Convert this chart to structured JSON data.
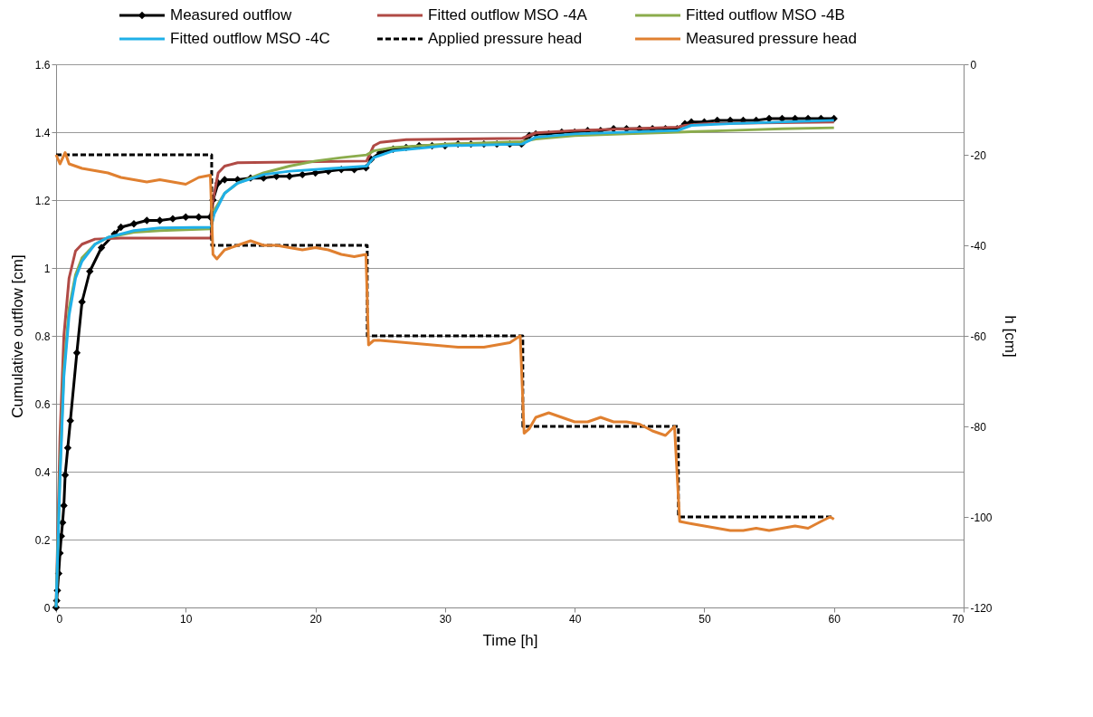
{
  "chart_data": {
    "type": "line",
    "xlabel": "Time [h]",
    "ylabel": "Cumulative outflow [cm]",
    "y2label": "h [cm]",
    "xlim": [
      0,
      70
    ],
    "xticks": [
      0,
      10,
      20,
      30,
      40,
      50,
      60,
      70
    ],
    "ylim": [
      0,
      1.6
    ],
    "yticks": [
      0,
      0.2,
      0.4,
      0.6,
      0.8,
      1,
      1.2,
      1.4,
      1.6
    ],
    "y2lim": [
      -120,
      0
    ],
    "y2ticks": [
      -120,
      -100,
      -80,
      -60,
      -40,
      -20,
      0
    ],
    "grid": "y",
    "legend": "top",
    "series": [
      {
        "name": "Measured outflow",
        "color": "#000000",
        "marker": "diamond",
        "line_style": "solid",
        "x": [
          0,
          0.05,
          0.1,
          0.2,
          0.3,
          0.4,
          0.5,
          0.6,
          0.7,
          0.9,
          1.1,
          1.6,
          2.0,
          2.6,
          3.5,
          4.5,
          5,
          6,
          7,
          8,
          9,
          10,
          11,
          11.9,
          12.1,
          12.5,
          13,
          14,
          15,
          16,
          17,
          18,
          19,
          20,
          21,
          22,
          23,
          23.9,
          24.3,
          25,
          26,
          27,
          28,
          29,
          30,
          31,
          32,
          33,
          34,
          35,
          35.9,
          36.5,
          37,
          38,
          39,
          40,
          41,
          42,
          43,
          44,
          45,
          46,
          47,
          47.9,
          48.5,
          49,
          50,
          51,
          52,
          53,
          54,
          55,
          56,
          57,
          58,
          59,
          60
        ],
        "values": [
          0,
          0.02,
          0.05,
          0.1,
          0.16,
          0.21,
          0.25,
          0.3,
          0.39,
          0.47,
          0.55,
          0.75,
          0.9,
          0.99,
          1.06,
          1.1,
          1.12,
          1.13,
          1.14,
          1.14,
          1.145,
          1.15,
          1.15,
          1.15,
          1.2,
          1.25,
          1.26,
          1.26,
          1.265,
          1.265,
          1.27,
          1.27,
          1.275,
          1.28,
          1.285,
          1.29,
          1.29,
          1.295,
          1.32,
          1.34,
          1.35,
          1.355,
          1.36,
          1.36,
          1.36,
          1.365,
          1.365,
          1.365,
          1.365,
          1.365,
          1.365,
          1.39,
          1.395,
          1.395,
          1.4,
          1.4,
          1.405,
          1.405,
          1.41,
          1.41,
          1.41,
          1.41,
          1.41,
          1.41,
          1.425,
          1.43,
          1.43,
          1.435,
          1.435,
          1.435,
          1.435,
          1.44,
          1.44,
          1.44,
          1.44,
          1.44,
          1.44
        ]
      },
      {
        "name": "Fitted outflow MSO -4A",
        "color": "#b04a45",
        "marker": "none",
        "line_style": "solid",
        "x": [
          0,
          0.3,
          0.6,
          1,
          1.5,
          2,
          3,
          5,
          11.95,
          12.1,
          12.5,
          13,
          14,
          23.95,
          24.5,
          25,
          27,
          35.95,
          37,
          40,
          47.95,
          48.5,
          50,
          60
        ],
        "values": [
          0,
          0.5,
          0.8,
          0.97,
          1.05,
          1.07,
          1.085,
          1.088,
          1.088,
          1.2,
          1.28,
          1.3,
          1.31,
          1.315,
          1.36,
          1.37,
          1.378,
          1.382,
          1.398,
          1.405,
          1.415,
          1.42,
          1.425,
          1.43
        ]
      },
      {
        "name": "Fitted outflow MSO -4B",
        "color": "#8bac4c",
        "marker": "none",
        "line_style": "solid",
        "x": [
          0,
          0.3,
          0.6,
          1,
          1.5,
          2,
          3,
          4,
          6,
          8,
          11.95,
          12.2,
          13,
          14,
          16,
          18,
          20,
          22,
          23.95,
          24.5,
          26,
          30,
          35.95,
          37,
          40,
          44,
          48,
          52,
          56,
          60
        ],
        "values": [
          0,
          0.4,
          0.7,
          0.88,
          0.98,
          1.03,
          1.07,
          1.09,
          1.105,
          1.11,
          1.115,
          1.17,
          1.22,
          1.25,
          1.28,
          1.3,
          1.315,
          1.325,
          1.333,
          1.345,
          1.355,
          1.365,
          1.372,
          1.38,
          1.39,
          1.395,
          1.4,
          1.405,
          1.41,
          1.413
        ]
      },
      {
        "name": "Fitted outflow MSO -4C",
        "color": "#1fb0e8",
        "marker": "none",
        "line_style": "solid",
        "x": [
          0,
          0.3,
          0.6,
          1,
          1.5,
          2,
          3,
          4,
          6,
          8,
          11.95,
          12.2,
          13,
          14,
          16,
          18,
          20,
          23.95,
          24.5,
          26,
          30,
          35.95,
          37,
          40,
          47.95,
          49,
          52,
          60
        ],
        "values": [
          0,
          0.38,
          0.68,
          0.86,
          0.97,
          1.02,
          1.07,
          1.09,
          1.11,
          1.118,
          1.12,
          1.16,
          1.22,
          1.25,
          1.275,
          1.285,
          1.29,
          1.3,
          1.325,
          1.345,
          1.36,
          1.365,
          1.385,
          1.395,
          1.405,
          1.42,
          1.425,
          1.435
        ]
      },
      {
        "name": "Applied pressure head",
        "color": "#000000",
        "marker": "none",
        "line_style": "dashed",
        "axis": "y2",
        "x": [
          0,
          12,
          12,
          24,
          24,
          36,
          36,
          48,
          48,
          60
        ],
        "values": [
          -20,
          -20,
          -40,
          -40,
          -60,
          -60,
          -80,
          -80,
          -100,
          -100
        ]
      },
      {
        "name": "Measured pressure head",
        "color": "#e08030",
        "marker": "none",
        "line_style": "solid",
        "axis": "y2",
        "x": [
          0,
          0.3,
          0.7,
          1,
          2,
          3,
          4,
          5,
          6,
          7,
          8,
          9,
          10,
          11,
          11.9,
          12.1,
          12.4,
          13,
          14,
          15,
          16,
          17,
          18,
          19,
          20,
          21,
          22,
          23,
          23.9,
          24.1,
          24.5,
          25,
          27,
          29,
          31,
          33,
          35,
          35.8,
          36.1,
          36.5,
          37,
          38,
          39,
          40,
          41,
          42,
          43,
          44,
          45,
          46,
          47,
          47.7,
          48.1,
          49,
          50,
          51,
          52,
          53,
          54,
          55,
          56,
          57,
          58,
          59,
          59.7,
          60
        ],
        "values": [
          -20,
          -22,
          -19.5,
          -22,
          -23,
          -23.5,
          -24,
          -25,
          -25.5,
          -26,
          -25.5,
          -26,
          -26.5,
          -25,
          -24.5,
          -42,
          -43,
          -41,
          -40,
          -39,
          -40,
          -40,
          -40.5,
          -41,
          -40.5,
          -41,
          -42,
          -42.5,
          -42,
          -62,
          -61,
          -61,
          -61.5,
          -62,
          -62.5,
          -62.5,
          -61.5,
          -60,
          -81.5,
          -80.5,
          -78,
          -77,
          -78,
          -79,
          -79,
          -78,
          -79,
          -79,
          -79.5,
          -81,
          -82,
          -80,
          -101,
          -101.5,
          -102,
          -102.5,
          -103,
          -103,
          -102.5,
          -103,
          -102.5,
          -102,
          -102.5,
          -101,
          -100,
          -100.5
        ]
      }
    ]
  }
}
